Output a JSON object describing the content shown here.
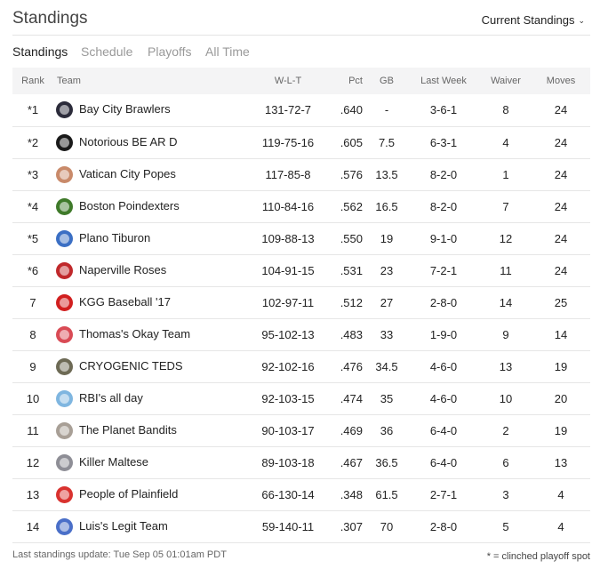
{
  "header": {
    "title": "Standings",
    "selector_label": "Current Standings"
  },
  "tabs": [
    {
      "label": "Standings",
      "active": true
    },
    {
      "label": "Schedule",
      "active": false
    },
    {
      "label": "Playoffs",
      "active": false
    },
    {
      "label": "All Time",
      "active": false
    }
  ],
  "columns": {
    "rank": "Rank",
    "team": "Team",
    "wlt": "W-L-T",
    "pct": "Pct",
    "gb": "GB",
    "last_week": "Last Week",
    "waiver": "Waiver",
    "moves": "Moves"
  },
  "rows": [
    {
      "rank": "*1",
      "team": "Bay City Brawlers",
      "wlt": "131-72-7",
      "pct": ".640",
      "gb": "-",
      "last_week": "3-6-1",
      "waiver": "8",
      "moves": "24",
      "logo_color": "#2b2b3a"
    },
    {
      "rank": "*2",
      "team": "Notorious BE AR D",
      "wlt": "119-75-16",
      "pct": ".605",
      "gb": "7.5",
      "last_week": "6-3-1",
      "waiver": "4",
      "moves": "24",
      "logo_color": "#1a1a1a"
    },
    {
      "rank": "*3",
      "team": "Vatican City Popes",
      "wlt": "117-85-8",
      "pct": ".576",
      "gb": "13.5",
      "last_week": "8-2-0",
      "waiver": "1",
      "moves": "24",
      "logo_color": "#c98a6a"
    },
    {
      "rank": "*4",
      "team": "Boston Poindexters",
      "wlt": "110-84-16",
      "pct": ".562",
      "gb": "16.5",
      "last_week": "8-2-0",
      "waiver": "7",
      "moves": "24",
      "logo_color": "#3f7a2a"
    },
    {
      "rank": "*5",
      "team": "Plano Tiburon",
      "wlt": "109-88-13",
      "pct": ".550",
      "gb": "19",
      "last_week": "9-1-0",
      "waiver": "12",
      "moves": "24",
      "logo_color": "#3b6fc4"
    },
    {
      "rank": "*6",
      "team": "Naperville Roses",
      "wlt": "104-91-15",
      "pct": ".531",
      "gb": "23",
      "last_week": "7-2-1",
      "waiver": "11",
      "moves": "24",
      "logo_color": "#c0282b"
    },
    {
      "rank": "7",
      "team": "KGG Baseball '17",
      "wlt": "102-97-11",
      "pct": ".512",
      "gb": "27",
      "last_week": "2-8-0",
      "waiver": "14",
      "moves": "25",
      "logo_color": "#d11f1f"
    },
    {
      "rank": "8",
      "team": "Thomas's Okay Team",
      "wlt": "95-102-13",
      "pct": ".483",
      "gb": "33",
      "last_week": "1-9-0",
      "waiver": "9",
      "moves": "14",
      "logo_color": "#d94b55"
    },
    {
      "rank": "9",
      "team": "CRYOGENIC TEDS",
      "wlt": "92-102-16",
      "pct": ".476",
      "gb": "34.5",
      "last_week": "4-6-0",
      "waiver": "13",
      "moves": "19",
      "logo_color": "#6d6a55"
    },
    {
      "rank": "10",
      "team": "RBI's all day",
      "wlt": "92-103-15",
      "pct": ".474",
      "gb": "35",
      "last_week": "4-6-0",
      "waiver": "10",
      "moves": "20",
      "logo_color": "#7fb6e0"
    },
    {
      "rank": "11",
      "team": "The Planet Bandits",
      "wlt": "90-103-17",
      "pct": ".469",
      "gb": "36",
      "last_week": "6-4-0",
      "waiver": "2",
      "moves": "19",
      "logo_color": "#a89f96"
    },
    {
      "rank": "12",
      "team": "Killer Maltese",
      "wlt": "89-103-18",
      "pct": ".467",
      "gb": "36.5",
      "last_week": "6-4-0",
      "waiver": "6",
      "moves": "13",
      "logo_color": "#8e8e96"
    },
    {
      "rank": "13",
      "team": "People of Plainfield",
      "wlt": "66-130-14",
      "pct": ".348",
      "gb": "61.5",
      "last_week": "2-7-1",
      "waiver": "3",
      "moves": "4",
      "logo_color": "#d9322f"
    },
    {
      "rank": "14",
      "team": "Luis's Legit Team",
      "wlt": "59-140-11",
      "pct": ".307",
      "gb": "70",
      "last_week": "2-8-0",
      "waiver": "5",
      "moves": "4",
      "logo_color": "#4a6fc8"
    }
  ],
  "footer": {
    "last_update": "Last standings update: Tue Sep 05 01:01am PDT",
    "legend": "* = clinched playoff spot"
  }
}
